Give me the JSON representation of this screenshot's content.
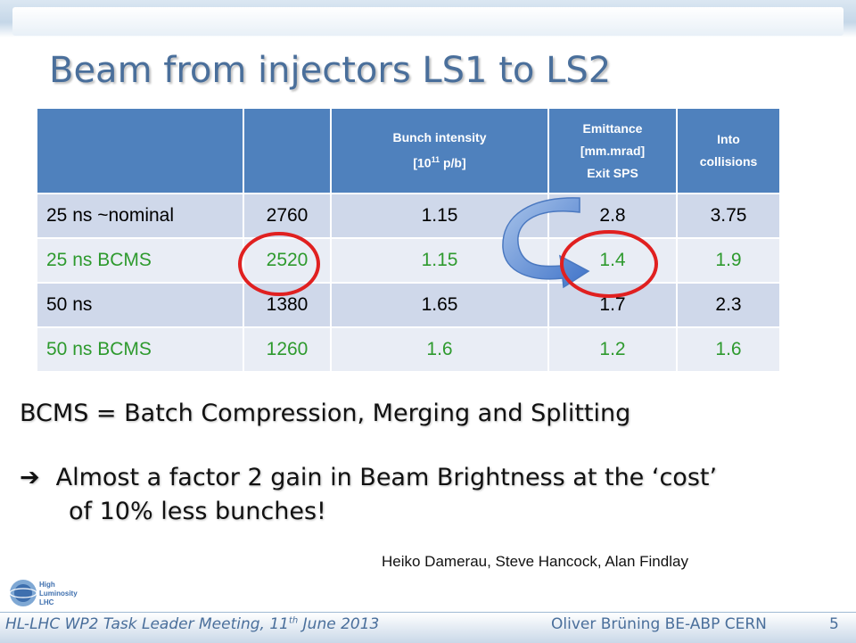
{
  "slide": {
    "title": "Beam from injectors LS1 to LS2",
    "page_number": "5"
  },
  "table": {
    "headers": [
      "",
      "",
      "Bunch intensity",
      "Emittance",
      "Into"
    ],
    "header_lines": {
      "intensity_2": "[10",
      "intensity_sup": "11",
      "intensity_3": " p/b]",
      "emittance_2": "[mm.mrad]",
      "emittance_3": "Exit SPS",
      "into_2": "collisions"
    },
    "rows": [
      {
        "label": "25 ns ~nominal",
        "bunches": "2760",
        "intensity": "1.15",
        "emittance": "2.8",
        "collisions": "3.75",
        "color": "#111111"
      },
      {
        "label": "25 ns  BCMS",
        "bunches": "2520",
        "intensity": "1.15",
        "emittance": "1.4",
        "collisions": "1.9",
        "color": "#2e9a2e"
      },
      {
        "label": "50 ns",
        "bunches": "1380",
        "intensity": "1.65",
        "emittance": "1.7",
        "collisions": "2.3",
        "color": "#111111"
      },
      {
        "label": "50 ns   BCMS",
        "bunches": "1260",
        "intensity": "1.6",
        "emittance": "1.2",
        "collisions": "1.6",
        "color": "#2e9a2e"
      }
    ]
  },
  "notes": {
    "bcms_definition": "BCMS = Batch Compression, Merging and Splitting",
    "arrow_glyph": "➔",
    "gain_line1": "Almost a factor 2 gain in Beam Brightness at the ‘cost’",
    "gain_line2": "of 10% less bunches!",
    "authors": "Heiko Damerau, Steve Hancock, Alan Findlay"
  },
  "footer": {
    "left_a": "HL-LHC WP2 Task Leader Meeting, 11",
    "left_sup": "th",
    "left_b": " June 2013",
    "right": "Oliver Brüning BE-ABP CERN"
  },
  "logo": {
    "line1": "High",
    "line2": "Luminosity",
    "line3": "LHC"
  },
  "colors": {
    "header_blue": "#4f81bd",
    "highlight_red": "#e02020",
    "bcms_green": "#2e9a2e",
    "title_blue": "#4a6f9b"
  }
}
